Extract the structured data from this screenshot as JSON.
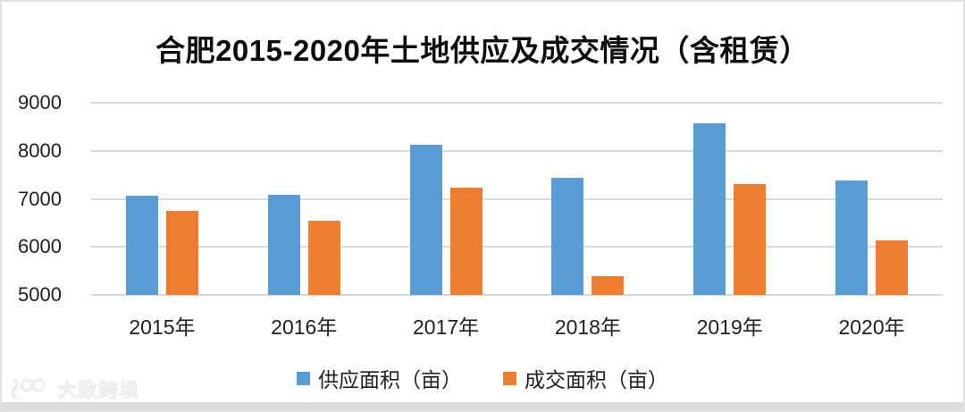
{
  "chart_data": {
    "type": "bar",
    "title": "合肥2015-2020年土地供应及成交情况（含租赁）",
    "categories": [
      "2015年",
      "2016年",
      "2017年",
      "2018年",
      "2019年",
      "2020年"
    ],
    "series": [
      {
        "key": "supply",
        "name": "供应面积（亩）",
        "color": "#5B9BD5",
        "values": [
          7060,
          7080,
          8120,
          7430,
          8580,
          7380
        ]
      },
      {
        "key": "deal",
        "name": "成交面积（亩）",
        "color": "#ED7D31",
        "values": [
          6750,
          6550,
          7230,
          5400,
          7300,
          6140
        ]
      }
    ],
    "ylim": [
      5000,
      9000
    ],
    "yticks": [
      9000,
      8000,
      7000,
      6000,
      5000
    ],
    "grid": true,
    "legend_position": "bottom",
    "gridline_color": "#d9d9d9",
    "axis_text_color": "#1f1f1f",
    "title_color": "#0d0d0d"
  },
  "watermark": {
    "logo": "100-glasses-logo",
    "text": "大数跨境",
    "color": "#ececec"
  }
}
